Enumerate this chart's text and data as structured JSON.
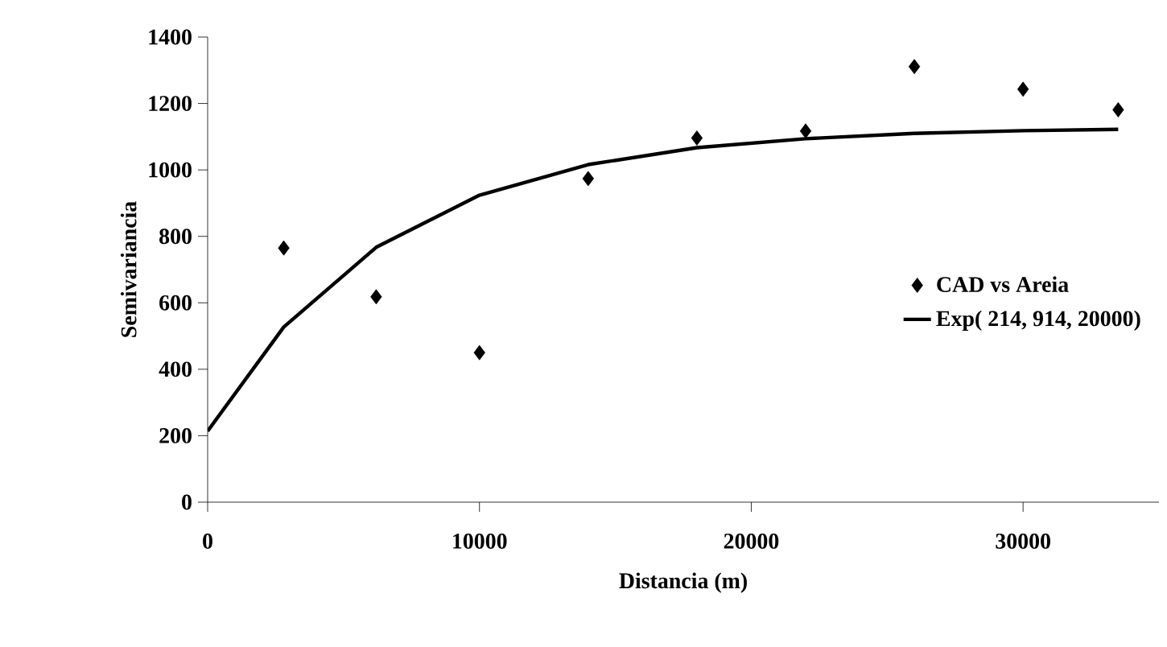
{
  "chart_data": {
    "type": "scatter",
    "xlabel": "Distancia (m)",
    "ylabel": "Semivariancia",
    "xlim": [
      0,
      35000
    ],
    "xticks": [
      0,
      10000,
      20000,
      30000
    ],
    "ylim": [
      0,
      1400
    ],
    "yticks": [
      0,
      200,
      400,
      600,
      800,
      1000,
      1200,
      1400
    ],
    "grid": false,
    "legend": "right",
    "series": [
      {
        "name": "CAD vs Areia",
        "marker": "diamond",
        "color": "#000000",
        "x": [
          2800,
          6200,
          10000,
          14000,
          18000,
          22000,
          26000,
          30000,
          33500
        ],
        "values": [
          765,
          618,
          450,
          974,
          1096,
          1117,
          1311,
          1243,
          1181
        ]
      },
      {
        "name": "Exp( 214, 914, 20000)",
        "type": "line",
        "marker": "none",
        "line_style": "solid",
        "color": "#000000",
        "x": [
          0,
          2800,
          6200,
          10000,
          14000,
          18000,
          22000,
          26000,
          30000,
          33500
        ],
        "values": [
          214,
          527,
          767,
          924,
          1016,
          1067,
          1094,
          1110,
          1118,
          1122
        ]
      }
    ]
  }
}
